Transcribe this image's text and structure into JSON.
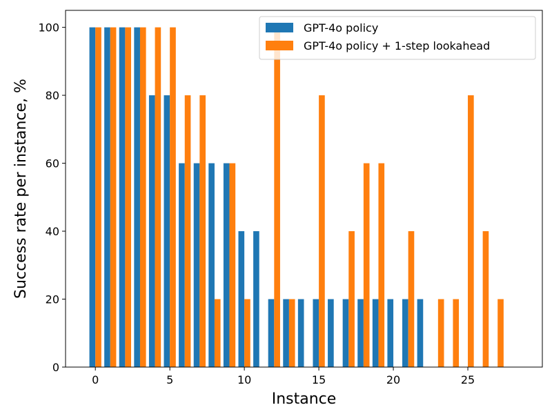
{
  "chart_data": {
    "type": "bar",
    "title": "",
    "xlabel": "Instance",
    "ylabel": "Success rate per instance, %",
    "x": [
      0,
      1,
      2,
      3,
      4,
      5,
      6,
      7,
      8,
      9,
      10,
      11,
      12,
      13,
      14,
      15,
      16,
      17,
      18,
      19,
      20,
      21,
      22,
      23,
      24,
      25,
      26,
      27
    ],
    "series": [
      {
        "name": "GPT-4o policy",
        "color": "#1f77b4",
        "values": [
          100,
          100,
          100,
          100,
          80,
          80,
          60,
          60,
          60,
          60,
          40,
          40,
          20,
          20,
          20,
          20,
          20,
          20,
          20,
          20,
          20,
          20,
          20,
          0,
          0,
          0,
          0,
          0
        ]
      },
      {
        "name": "GPT-4o policy + 1-step lookahead",
        "color": "#ff7f0e",
        "values": [
          100,
          100,
          100,
          100,
          100,
          100,
          80,
          80,
          20,
          60,
          20,
          0,
          100,
          20,
          0,
          80,
          0,
          40,
          60,
          60,
          0,
          40,
          0,
          20,
          20,
          80,
          40,
          20
        ]
      }
    ],
    "xlim": [
      -2,
      30
    ],
    "ylim": [
      0,
      105
    ],
    "xticks": [
      "0",
      "5",
      "10",
      "15",
      "20",
      "25"
    ],
    "yticks": [
      "0",
      "20",
      "40",
      "60",
      "80",
      "100"
    ],
    "grid": false,
    "legend": "top-right"
  }
}
